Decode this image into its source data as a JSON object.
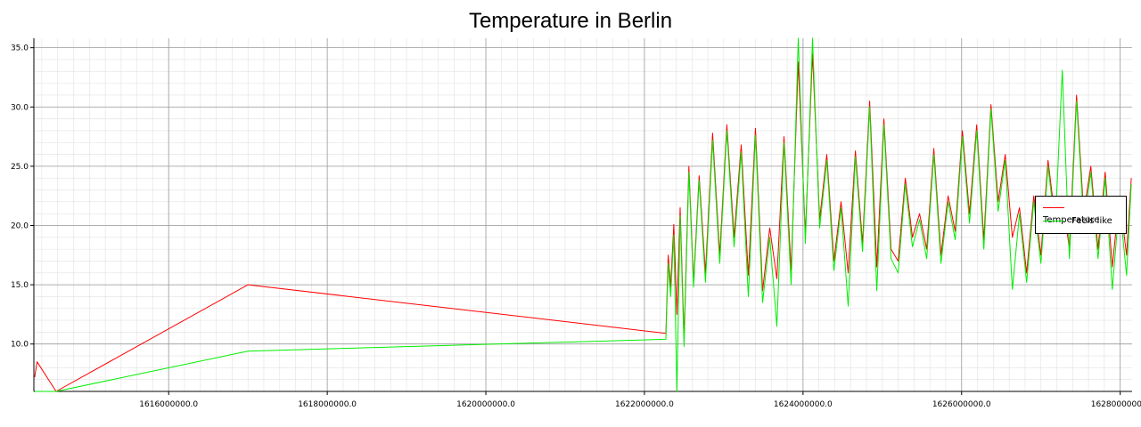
{
  "chart_data": {
    "type": "line",
    "title": "Temperature in Berlin",
    "xlabel": "",
    "ylabel": "",
    "xlim": [
      1614300000,
      1628150000
    ],
    "ylim": [
      6.0,
      35.8
    ],
    "x_ticks": [
      1616000000,
      1618000000,
      1620000000,
      1622000000,
      1624000000,
      1626000000,
      1628000000
    ],
    "x_tick_labels": [
      "1616000000.0",
      "1618000000.0",
      "1620000000.0",
      "1622000000.0",
      "1624000000.0",
      "1626000000.0",
      "1628000000.0"
    ],
    "y_ticks": [
      10,
      15,
      20,
      25,
      30,
      35
    ],
    "y_tick_labels": [
      "10.0",
      "15.0",
      "20.0",
      "25.0",
      "30.0",
      "35.0"
    ],
    "grid": true,
    "legend_position": "right",
    "series": [
      {
        "name": "Temperature",
        "color": "#ff0000",
        "x": [
          1614310000,
          1614340000,
          1614580000,
          1617000000,
          1622270000,
          1622300000,
          1622330000,
          1622370000,
          1622410000,
          1622450000,
          1622500000,
          1622560000,
          1622620000,
          1622690000,
          1622770000,
          1622860000,
          1622950000,
          1623040000,
          1623130000,
          1623220000,
          1623310000,
          1623400000,
          1623490000,
          1623580000,
          1623670000,
          1623760000,
          1623850000,
          1623940000,
          1624030000,
          1624120000,
          1624210000,
          1624300000,
          1624390000,
          1624480000,
          1624570000,
          1624660000,
          1624750000,
          1624840000,
          1624930000,
          1625020000,
          1625110000,
          1625200000,
          1625290000,
          1625380000,
          1625470000,
          1625560000,
          1625650000,
          1625740000,
          1625830000,
          1625920000,
          1626010000,
          1626100000,
          1626190000,
          1626280000,
          1626370000,
          1626460000,
          1626550000,
          1626640000,
          1626730000,
          1626820000,
          1626910000,
          1627000000,
          1627090000,
          1627180000,
          1627270000,
          1627360000,
          1627450000,
          1627540000,
          1627630000,
          1627720000,
          1627810000,
          1627900000,
          1627990000,
          1628080000,
          1628140000
        ],
        "values": [
          7.2,
          8.5,
          6.0,
          15.0,
          10.9,
          17.5,
          14.8,
          20.1,
          12.5,
          21.5,
          10.5,
          25.0,
          15.2,
          24.2,
          16.0,
          27.8,
          17.5,
          28.5,
          19.0,
          26.8,
          15.8,
          28.2,
          14.5,
          19.8,
          15.5,
          27.5,
          16.2,
          33.8,
          19.2,
          34.5,
          20.5,
          26.0,
          17.0,
          22.0,
          16.0,
          26.3,
          18.5,
          30.5,
          16.5,
          29.0,
          18.0,
          17.0,
          24.0,
          19.0,
          21.0,
          18.0,
          26.5,
          17.5,
          22.5,
          19.5,
          28.0,
          21.0,
          28.5,
          18.8,
          30.2,
          22.0,
          26.0,
          19.0,
          21.5,
          16.0,
          22.5,
          17.5,
          25.5,
          20.5,
          22.5,
          18.0,
          31.0,
          21.0,
          25.0,
          18.0,
          24.5,
          16.5,
          22.5,
          17.5,
          24.0
        ]
      },
      {
        "name": "Feels like",
        "color": "#00ee00",
        "x": [
          1614310000,
          1614340000,
          1614580000,
          1617000000,
          1622270000,
          1622300000,
          1622330000,
          1622370000,
          1622410000,
          1622450000,
          1622500000,
          1622560000,
          1622620000,
          1622690000,
          1622770000,
          1622860000,
          1622950000,
          1623040000,
          1623130000,
          1623220000,
          1623310000,
          1623400000,
          1623490000,
          1623580000,
          1623670000,
          1623760000,
          1623850000,
          1623940000,
          1624030000,
          1624120000,
          1624210000,
          1624300000,
          1624390000,
          1624480000,
          1624570000,
          1624660000,
          1624750000,
          1624840000,
          1624930000,
          1625020000,
          1625110000,
          1625200000,
          1625290000,
          1625380000,
          1625470000,
          1625560000,
          1625650000,
          1625740000,
          1625830000,
          1625920000,
          1626010000,
          1626100000,
          1626190000,
          1626280000,
          1626370000,
          1626460000,
          1626550000,
          1626640000,
          1626730000,
          1626820000,
          1626910000,
          1627000000,
          1627090000,
          1627180000,
          1627270000,
          1627360000,
          1627450000,
          1627540000,
          1627630000,
          1627720000,
          1627810000,
          1627900000,
          1627990000,
          1628080000,
          1628140000
        ],
        "values": [
          6.0,
          6.0,
          6.0,
          9.4,
          10.4,
          16.8,
          14.0,
          19.2,
          6.0,
          20.8,
          9.8,
          24.5,
          14.8,
          23.8,
          15.2,
          27.2,
          16.8,
          28.0,
          18.2,
          26.2,
          14.0,
          27.6,
          13.5,
          19.0,
          11.5,
          27.0,
          15.0,
          35.8,
          18.5,
          35.8,
          19.8,
          25.5,
          16.2,
          21.5,
          13.2,
          25.8,
          17.8,
          30.0,
          14.5,
          28.5,
          17.2,
          16.0,
          23.5,
          18.2,
          20.5,
          17.2,
          26.0,
          16.8,
          22.0,
          18.8,
          27.5,
          20.2,
          28.0,
          18.0,
          29.8,
          21.2,
          25.5,
          14.6,
          21.0,
          15.2,
          22.0,
          16.8,
          25.0,
          19.8,
          33.1,
          17.2,
          30.5,
          20.2,
          24.5,
          17.2,
          24.0,
          14.6,
          22.0,
          15.8,
          23.5
        ]
      }
    ]
  }
}
